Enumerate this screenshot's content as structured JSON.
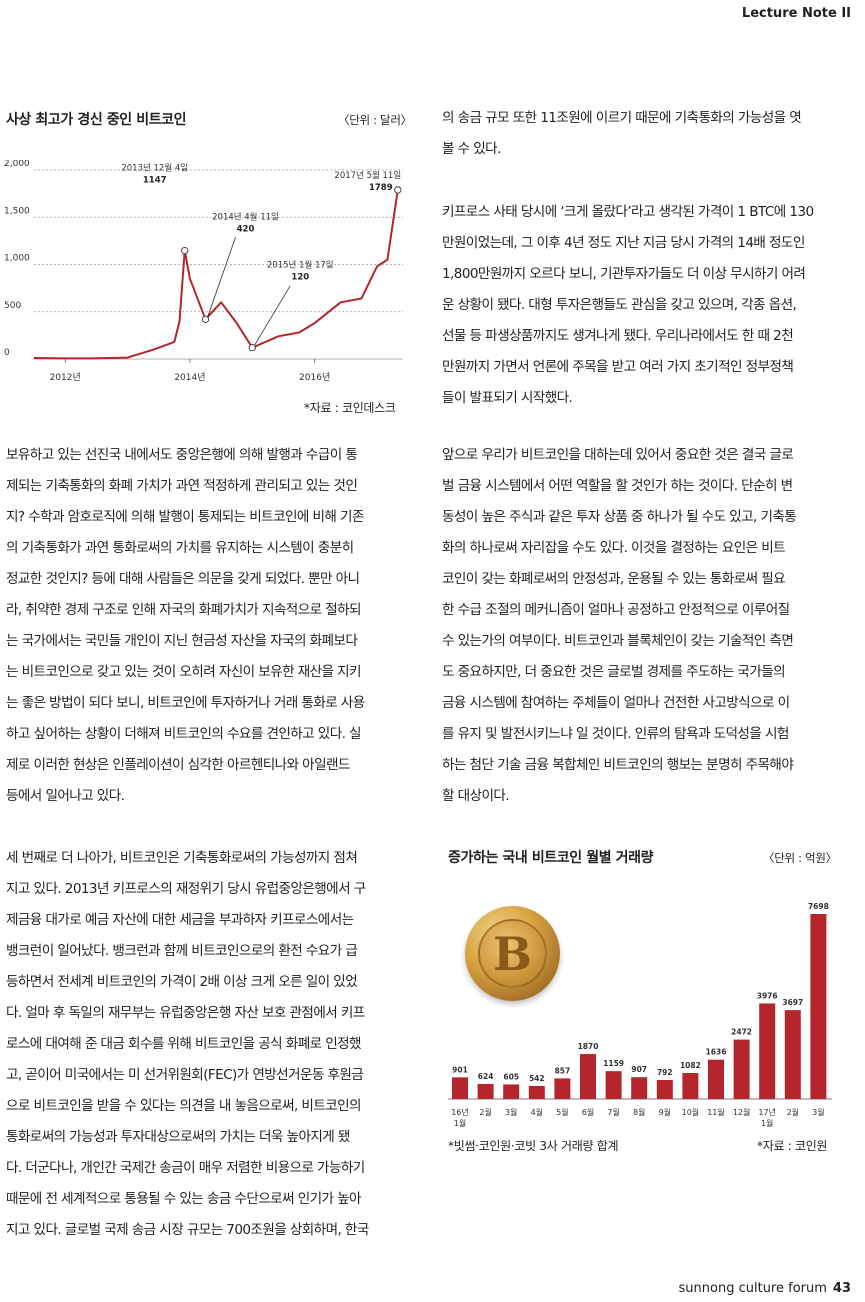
{
  "header": {
    "title": "Lecture Note II"
  },
  "footer": {
    "brand": "sunnong culture forum",
    "page_number": "43"
  },
  "chart1": {
    "title": "사상 최고가 경신 중인 비트코인",
    "unit": "〈단위 : 달러〉",
    "source": "*자료 : 코인데스크",
    "y_ticks": [
      "2,000",
      "1,500",
      "1,000",
      "500",
      "0"
    ],
    "x_ticks": [
      "2012년",
      "2014년",
      "2016년"
    ],
    "annotations": [
      {
        "date": "2013년 12월 4일",
        "value": "1147"
      },
      {
        "date": "2014년 4월 11일",
        "value": "420"
      },
      {
        "date": "2015년 1월 17일",
        "value": "120"
      },
      {
        "date": "2017년 5월 11일",
        "value": "1789"
      }
    ]
  },
  "chart2": {
    "title": "증가하는 국내 비트코인 월별 거래량",
    "unit": "〈단위 : 억원〉",
    "note": "*빗썸·코인원·코빗 3사 거래량 합계",
    "source": "*자료 : 코인원"
  },
  "chart_data": [
    {
      "type": "line",
      "title": "사상 최고가 경신 중인 비트코인",
      "ylim": [
        0,
        2000
      ],
      "x": [
        "2011-07",
        "2012-01",
        "2012-06",
        "2013-01",
        "2013-06",
        "2013-10",
        "2013-11",
        "2013-12",
        "2014-01",
        "2014-04",
        "2014-07",
        "2014-10",
        "2015-01",
        "2015-06",
        "2015-10",
        "2016-01",
        "2016-06",
        "2016-10",
        "2017-01",
        "2017-03",
        "2017-05"
      ],
      "series": [
        {
          "values": [
            10,
            6,
            6,
            15,
            100,
            180,
            400,
            1147,
            850,
            420,
            600,
            380,
            120,
            240,
            280,
            380,
            600,
            640,
            980,
            1050,
            1789
          ]
        }
      ]
    },
    {
      "type": "bar",
      "title": "증가하는 국내 비트코인 월별 거래량",
      "categories": [
        "16년\n1월",
        "2월",
        "3월",
        "4월",
        "5월",
        "6월",
        "7월",
        "8월",
        "9월",
        "10월",
        "11월",
        "12월",
        "17년\n1월",
        "2월",
        "3월"
      ],
      "values": [
        901,
        624,
        605,
        542,
        857,
        1870,
        1159,
        907,
        792,
        1082,
        1636,
        2472,
        3976,
        3697,
        7698
      ],
      "color": "#b5262c"
    }
  ],
  "text": {
    "left1": "보유하고 있는 선진국 내에서도 중앙은행에 의해 발행과 수급이 통\n제되는 기축통화의 화폐 가치가 과연 적정하게 관리되고 있는 것인\n지? 수학과 암호로직에 의해 발행이 통제되는 비트코인에 비해 기존\n의 기축통화가 과연 통화로써의 가치를 유지하는 시스템이 충분히\n정교한 것인지? 등에 대해 사람들은 의문을 갖게 되었다. 뿐만 아니\n라, 취약한 경제 구조로 인해 자국의 화폐가치가 지속적으로 절하되\n는 국가에서는 국민들 개인이 지닌 현금성 자산을 자국의 화폐보다\n는 비트코인으로 갖고 있는 것이 오히려 자신이 보유한 재산을 지키\n는 좋은 방법이 되다 보니, 비트코인에 투자하거나 거래 통화로 사용\n하고 싶어하는 상황이 더해져 비트코인의 수요를 견인하고 있다. 실\n제로 이러한 현상은 인플레이션이 심각한 아르헨티나와 아일랜드\n등에서 일어나고 있다.",
    "left2": "세 번째로 더 나아가, 비트코인은 기축통화로써의 가능성까지 점쳐\n지고 있다. 2013년 키프로스의 재정위기 당시 유럽중앙은행에서 구\n제금융 대가로 예금 자산에 대한 세금을 부과하자 키프로스에서는\n뱅크런이 일어났다. 뱅크런과 함께 비트코인으로의 환전 수요가 급\n등하면서 전세계 비트코인의 가격이 2배 이상 크게 오른 일이 있었\n다. 얼마 후 독일의 재무부는 유럽중앙은행 자산 보호 관점에서 키프\n로스에 대여해 준 대금 회수를 위해 비트코인을 공식 화폐로 인정했\n고, 곧이어 미국에서는 미 선거위원회(FEC)가 연방선거운동 후원금\n으로 비트코인을 받을 수 있다는 의견을 내 놓음으로써, 비트코인의\n통화로써의 가능성과 투자대상으로써의 가치는 더욱 높아지게 됐\n다. 더군다나, 개인간 국제간 송금이 매우 저렴한 비용으로 가능하기\n때문에 전 세계적으로 통용될 수 있는 송금 수단으로써 인기가 높아\n지고 있다. 글로벌 국제 송금 시장 규모는 700조원을 상회하며, 한국",
    "right1": "의 송금 규모 또한 11조원에 이르기 때문에 기축통화의 가능성을 엿\n볼 수 있다.",
    "right2": "키프로스 사태 당시에 ‘크게 올랐다’라고 생각된 가격이 1 BTC에 130\n만원이었는데, 그 이후 4년 정도 지난 지금 당시 가격의 14배 정도인\n1,800만원까지 오르다 보니, 기관투자가들도 더 이상 무시하기 어려\n운 상황이 됐다. 대형 투자은행들도 관심을 갖고 있으며, 각종 옵션,\n선물 등 파생상품까지도 생겨나게 됐다. 우리나라에서도 한 때 2천\n만원까지 가면서 언론에 주목을 받고 여러 가지 초기적인 정부정책\n들이 발표되기 시작했다.",
    "right3": "앞으로 우리가 비트코인을 대하는데 있어서 중요한 것은 결국 글로\n벌 금융 시스템에서 어떤 역할을 할 것인가 하는 것이다. 단순히 변\n동성이 높은 주식과 같은 투자 상품 중 하나가 될 수도 있고, 기축통\n화의 하나로써 자리잡을 수도 있다. 이것을 결정하는 요인은 비트\n코인이 갖는 화폐로써의 안정성과, 운용될 수 있는 통화로써 필요\n한 수급 조절의 메커니즘이 얼마나 공정하고 안정적으로 이루어질\n수 있는가의 여부이다. 비트코인과 블록체인이 갖는 기술적인 측면\n도 중요하지만, 더 중요한 것은 글로벌 경제를 주도하는 국가들의\n금융 시스템에 참여하는 주체들이 얼마나 건전한 사고방식으로 이\n를 유지 및 발전시키느냐 일 것이다. 인류의 탐욕과 도덕성을 시험\n하는 첨단 기술 금융 복합체인 비트코인의 행보는 분명히 주목해야\n할 대상이다."
  }
}
